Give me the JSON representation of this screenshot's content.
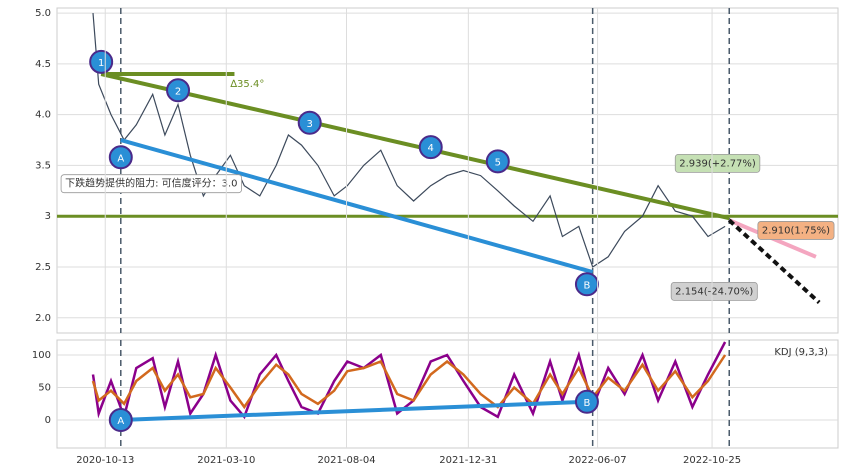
{
  "chart_data": [
    {
      "type": "line",
      "x": [
        "2020-09-28",
        "2020-10-05",
        "2020-10-20",
        "2020-11-05",
        "2020-11-20",
        "2020-12-10",
        "2020-12-25",
        "2021-01-10",
        "2021-01-25",
        "2021-02-10",
        "2021-02-25",
        "2021-03-15",
        "2021-04-01",
        "2021-04-20",
        "2021-05-10",
        "2021-05-25",
        "2021-06-10",
        "2021-06-30",
        "2021-07-20",
        "2021-08-05",
        "2021-08-25",
        "2021-09-15",
        "2021-10-05",
        "2021-10-25",
        "2021-11-15",
        "2021-12-05",
        "2021-12-25",
        "2022-01-15",
        "2022-02-05",
        "2022-02-25",
        "2022-03-20",
        "2022-04-10",
        "2022-04-25",
        "2022-05-15",
        "2022-06-01",
        "2022-06-20",
        "2022-07-10",
        "2022-08-01",
        "2022-08-20",
        "2022-09-10",
        "2022-10-01",
        "2022-10-20",
        "2022-11-10"
      ],
      "series": [
        {
          "color": "#3d4a5c",
          "values": [
            5.0,
            4.3,
            4.0,
            3.75,
            3.9,
            4.2,
            3.8,
            4.1,
            3.6,
            3.2,
            3.4,
            3.6,
            3.3,
            3.2,
            3.5,
            3.8,
            3.7,
            3.5,
            3.2,
            3.3,
            3.5,
            3.65,
            3.3,
            3.15,
            3.3,
            3.4,
            3.45,
            3.4,
            3.25,
            3.1,
            2.95,
            3.2,
            2.8,
            2.9,
            2.5,
            2.6,
            2.85,
            3.0,
            3.3,
            3.05,
            3.0,
            2.8,
            2.9
          ]
        }
      ],
      "xlim": [
        "2020-08-15",
        "2023-03-28"
      ],
      "ylim": [
        1.85,
        5.05
      ],
      "yticks": [
        {
          "value": 2,
          "label": "2.0"
        },
        2.5,
        3,
        3.5,
        {
          "value": 4,
          "label": "4.0"
        },
        4.5,
        {
          "value": 5,
          "label": "5.0"
        }
      ],
      "grid": true,
      "hline": 3,
      "vlines": [
        "2020-11-01",
        "2022-06-01",
        "2022-11-15"
      ],
      "trend_lines": [
        {
          "from": [
            "2020-10-08",
            4.4
          ],
          "to": [
            "2022-11-15",
            2.98
          ],
          "color": "#6b8e23"
        },
        {
          "from": [
            "2020-11-01",
            3.75
          ],
          "to": [
            "2022-06-01",
            2.45
          ],
          "color": "#2a8fd6"
        },
        {
          "from": [
            "2020-10-08",
            4.4
          ],
          "to": [
            "2021-03-20",
            4.4
          ],
          "color": "#6b8e23"
        },
        {
          "from": [
            "2022-11-15",
            2.96
          ],
          "to": [
            "2023-03-01",
            2.6
          ],
          "color": "#f4a6c0"
        },
        {
          "from": [
            "2022-11-15",
            2.96
          ],
          "to": [
            "2023-03-05",
            2.15
          ],
          "color": "#111111"
        }
      ],
      "labels": [
        {
          "text": "1",
          "x": "2020-10-08",
          "y": 4.52,
          "style": "circle",
          "color": "#2a8fd6"
        },
        {
          "text": "2",
          "x": "2021-01-10",
          "y": 4.24,
          "style": "circle",
          "color": "#2a8fd6"
        },
        {
          "text": "3",
          "x": "2021-06-20",
          "y": 3.92,
          "style": "circle",
          "color": "#2a8fd6"
        },
        {
          "text": "4",
          "x": "2021-11-15",
          "y": 3.68,
          "style": "circle",
          "color": "#2a8fd6"
        },
        {
          "text": "5",
          "x": "2022-02-05",
          "y": 3.54,
          "style": "circle",
          "color": "#2a8fd6"
        },
        {
          "text": "A",
          "x": "2020-11-01",
          "y": 3.58,
          "style": "circle",
          "color": "#2a8fd6"
        },
        {
          "text": "B",
          "x": "2022-05-25",
          "y": 2.33,
          "style": "circle",
          "color": "#2a8fd6"
        },
        {
          "text": "∆35.4°",
          "x": "2021-03-15",
          "y": 4.3,
          "style": "text",
          "color": "#6b8e23"
        },
        {
          "text": "下跌趋势提供的阻力: 可信度评分：3.0",
          "x": "2020-08-20",
          "y": 3.32,
          "style": "box",
          "color": "#ffffff"
        },
        {
          "text": "2.939(+2.77%)",
          "x": "2022-09-10",
          "y": 3.52,
          "style": "box",
          "color": "#c5e0b4"
        },
        {
          "text": "2.910(1.75%)",
          "x": "2022-12-20",
          "y": 2.86,
          "style": "box",
          "color": "#f4b183"
        },
        {
          "text": "2.154(-24.70%)",
          "x": "2022-09-05",
          "y": 2.26,
          "style": "box",
          "color": "#d0d0d0"
        }
      ]
    },
    {
      "type": "line",
      "title": "KDJ (9,3,3)",
      "x": [
        "2020-09-28",
        "2020-10-05",
        "2020-10-20",
        "2020-11-05",
        "2020-11-20",
        "2020-12-10",
        "2020-12-25",
        "2021-01-10",
        "2021-01-25",
        "2021-02-10",
        "2021-02-25",
        "2021-03-15",
        "2021-04-01",
        "2021-04-20",
        "2021-05-10",
        "2021-05-25",
        "2021-06-10",
        "2021-06-30",
        "2021-07-20",
        "2021-08-05",
        "2021-08-25",
        "2021-09-15",
        "2021-10-05",
        "2021-10-25",
        "2021-11-15",
        "2021-12-05",
        "2021-12-25",
        "2022-01-15",
        "2022-02-05",
        "2022-02-25",
        "2022-03-20",
        "2022-04-10",
        "2022-04-25",
        "2022-05-15",
        "2022-06-01",
        "2022-06-20",
        "2022-07-10",
        "2022-08-01",
        "2022-08-20",
        "2022-09-10",
        "2022-10-01",
        "2022-10-20",
        "2022-11-10"
      ],
      "series": [
        {
          "color": "#8b008b",
          "values": [
            70,
            10,
            60,
            5,
            80,
            95,
            20,
            90,
            10,
            40,
            100,
            30,
            5,
            70,
            100,
            60,
            20,
            10,
            60,
            90,
            80,
            100,
            10,
            30,
            90,
            100,
            60,
            20,
            5,
            70,
            10,
            90,
            30,
            100,
            20,
            80,
            40,
            100,
            30,
            90,
            20,
            70,
            120
          ]
        },
        {
          "color": "#d2691e",
          "values": [
            60,
            30,
            45,
            25,
            60,
            80,
            45,
            70,
            35,
            40,
            80,
            50,
            20,
            55,
            85,
            70,
            40,
            25,
            45,
            75,
            80,
            90,
            40,
            30,
            70,
            90,
            70,
            40,
            20,
            50,
            25,
            70,
            40,
            80,
            35,
            65,
            45,
            85,
            45,
            75,
            35,
            60,
            100
          ]
        }
      ],
      "xlim": [
        "2020-08-15",
        "2023-03-28"
      ],
      "ylim": [
        -43,
        123
      ],
      "yticks": [
        0,
        50,
        100
      ],
      "xticks": [
        "2020-10-13",
        "2021-03-10",
        "2021-08-04",
        "2021-12-31",
        "2022-06-07",
        "2022-10-25"
      ],
      "grid": true,
      "vlines": [
        "2020-11-01",
        "2022-06-01",
        "2022-11-15"
      ],
      "trend_lines": [
        {
          "from": [
            "2020-11-01",
            0
          ],
          "to": [
            "2022-05-25",
            28
          ],
          "color": "#2a8fd6"
        }
      ],
      "labels": [
        {
          "text": "A",
          "x": "2020-11-01",
          "y": 0,
          "style": "circle",
          "color": "#2a8fd6"
        },
        {
          "text": "B",
          "x": "2022-05-25",
          "y": 28,
          "style": "circle",
          "color": "#2a8fd6"
        }
      ]
    }
  ]
}
